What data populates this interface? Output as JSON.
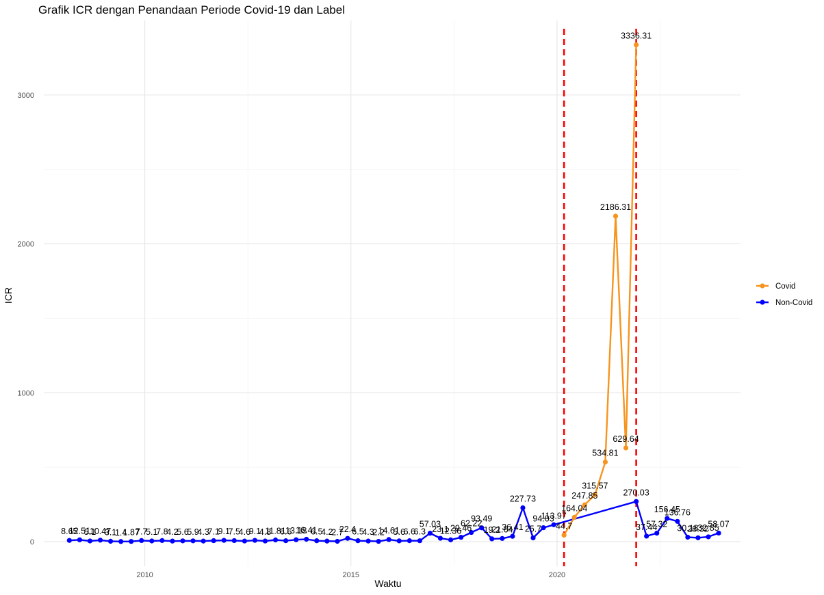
{
  "chart_data": {
    "type": "line",
    "title": "Grafik ICR dengan Penandaan Periode Covid-19 dan Label",
    "xlabel": "Waktu",
    "ylabel": "ICR",
    "xlim": [
      2007.55,
      2024.45
    ],
    "ylim": [
      -165,
      3500
    ],
    "x_ticks": [
      2010,
      2015,
      2020
    ],
    "y_ticks": [
      0,
      1000,
      2000,
      3000
    ],
    "grid": true,
    "legend_position": "right",
    "vlines": [
      {
        "x": 2020.17,
        "color": "#ff0000",
        "style": "dashed"
      },
      {
        "x": 2021.92,
        "color": "#ff0000",
        "style": "dashed"
      }
    ],
    "series": [
      {
        "name": "Covid",
        "color": "#f7941d",
        "points": [
          {
            "x": 2020.17,
            "y": 44.7,
            "label": "44.7"
          },
          {
            "x": 2020.42,
            "y": 164.04,
            "label": "164.04"
          },
          {
            "x": 2020.67,
            "y": 247.85,
            "label": "247.85"
          },
          {
            "x": 2020.92,
            "y": 315.57,
            "label": "315.57"
          },
          {
            "x": 2021.17,
            "y": 534.81,
            "label": "534.81"
          },
          {
            "x": 2021.42,
            "y": 2186.31,
            "label": "2186.31"
          },
          {
            "x": 2021.67,
            "y": 629.64,
            "label": "629.64"
          },
          {
            "x": 2021.92,
            "y": 3336.31,
            "label": "3336.31"
          }
        ]
      },
      {
        "name": "Non-Covid",
        "color": "#0000ff",
        "points": [
          {
            "x": 2008.17,
            "y": 8.65,
            "label": "8.65"
          },
          {
            "x": 2008.42,
            "y": 12.51,
            "label": "12.51"
          },
          {
            "x": 2008.67,
            "y": 5.1,
            "label": "5.1"
          },
          {
            "x": 2008.92,
            "y": 10.47,
            "label": "10.47"
          },
          {
            "x": 2009.17,
            "y": 3.1,
            "label": "3.1"
          },
          {
            "x": 2009.42,
            "y": 1.4,
            "label": "1.4"
          },
          {
            "x": 2009.67,
            "y": 1.87,
            "label": "1.87"
          },
          {
            "x": 2009.92,
            "y": 7.7,
            "label": "7.7"
          },
          {
            "x": 2010.17,
            "y": 5.1,
            "label": "5.1"
          },
          {
            "x": 2010.42,
            "y": 7.8,
            "label": "7.8"
          },
          {
            "x": 2010.67,
            "y": 4.2,
            "label": "4.2"
          },
          {
            "x": 2010.92,
            "y": 5.6,
            "label": "5.6"
          },
          {
            "x": 2011.17,
            "y": 5.9,
            "label": "5.9"
          },
          {
            "x": 2011.42,
            "y": 4.3,
            "label": "4.3"
          },
          {
            "x": 2011.67,
            "y": 7.1,
            "label": "7.1"
          },
          {
            "x": 2011.92,
            "y": 9.1,
            "label": "9.1"
          },
          {
            "x": 2012.17,
            "y": 7.5,
            "label": "7.5"
          },
          {
            "x": 2012.42,
            "y": 4.6,
            "label": "4.6"
          },
          {
            "x": 2012.67,
            "y": 9.1,
            "label": "9.1"
          },
          {
            "x": 2012.92,
            "y": 4.8,
            "label": "4.8"
          },
          {
            "x": 2013.17,
            "y": 11.81,
            "label": "11.81"
          },
          {
            "x": 2013.42,
            "y": 6.6,
            "label": "6.6"
          },
          {
            "x": 2013.67,
            "y": 13.18,
            "label": "13.18"
          },
          {
            "x": 2013.92,
            "y": 16.41,
            "label": "16.41"
          },
          {
            "x": 2014.17,
            "y": 6.5,
            "label": "6.5"
          },
          {
            "x": 2014.42,
            "y": 4.2,
            "label": "4.2"
          },
          {
            "x": 2014.67,
            "y": 2.7,
            "label": "2.7"
          },
          {
            "x": 2014.92,
            "y": 22.4,
            "label": "22.4"
          },
          {
            "x": 2015.17,
            "y": 6.5,
            "label": "6.5"
          },
          {
            "x": 2015.42,
            "y": 4.3,
            "label": "4.3"
          },
          {
            "x": 2015.67,
            "y": 2.2,
            "label": "2.2"
          },
          {
            "x": 2015.92,
            "y": 14.61,
            "label": "14.61"
          },
          {
            "x": 2016.17,
            "y": 5.6,
            "label": "5.6"
          },
          {
            "x": 2016.42,
            "y": 6.6,
            "label": "6.6"
          },
          {
            "x": 2016.67,
            "y": 6.3,
            "label": "6.3"
          },
          {
            "x": 2016.92,
            "y": 57.03,
            "label": "57.03"
          },
          {
            "x": 2017.17,
            "y": 23.1,
            "label": "23.1"
          },
          {
            "x": 2017.42,
            "y": 12.36,
            "label": "12.36"
          },
          {
            "x": 2017.67,
            "y": 29.46,
            "label": "29.46"
          },
          {
            "x": 2017.92,
            "y": 62.22,
            "label": "62.22"
          },
          {
            "x": 2018.17,
            "y": 93.49,
            "label": "93.49"
          },
          {
            "x": 2018.42,
            "y": 19.2,
            "label": "19.2"
          },
          {
            "x": 2018.67,
            "y": 21.64,
            "label": "21.64"
          },
          {
            "x": 2018.92,
            "y": 36.41,
            "label": "36.41"
          },
          {
            "x": 2019.17,
            "y": 227.73,
            "label": "227.73"
          },
          {
            "x": 2019.42,
            "y": 25.7,
            "label": "25.7"
          },
          {
            "x": 2019.67,
            "y": 94.03,
            "label": "94.03"
          },
          {
            "x": 2019.92,
            "y": 113.97,
            "label": "113.97"
          },
          {
            "x": 2021.92,
            "y": 270.03,
            "label": "270.03"
          },
          {
            "x": 2022.17,
            "y": 37.44,
            "label": "37.44"
          },
          {
            "x": 2022.42,
            "y": 57.32,
            "label": "57.32"
          },
          {
            "x": 2022.67,
            "y": 156.45,
            "label": "156.45"
          },
          {
            "x": 2022.92,
            "y": 136.76,
            "label": "136.76"
          },
          {
            "x": 2023.17,
            "y": 30.18,
            "label": "30.18"
          },
          {
            "x": 2023.42,
            "y": 26.32,
            "label": "26.32"
          },
          {
            "x": 2023.67,
            "y": 32.85,
            "label": "32.85"
          },
          {
            "x": 2023.92,
            "y": 58.07,
            "label": "58.07"
          }
        ]
      }
    ]
  }
}
